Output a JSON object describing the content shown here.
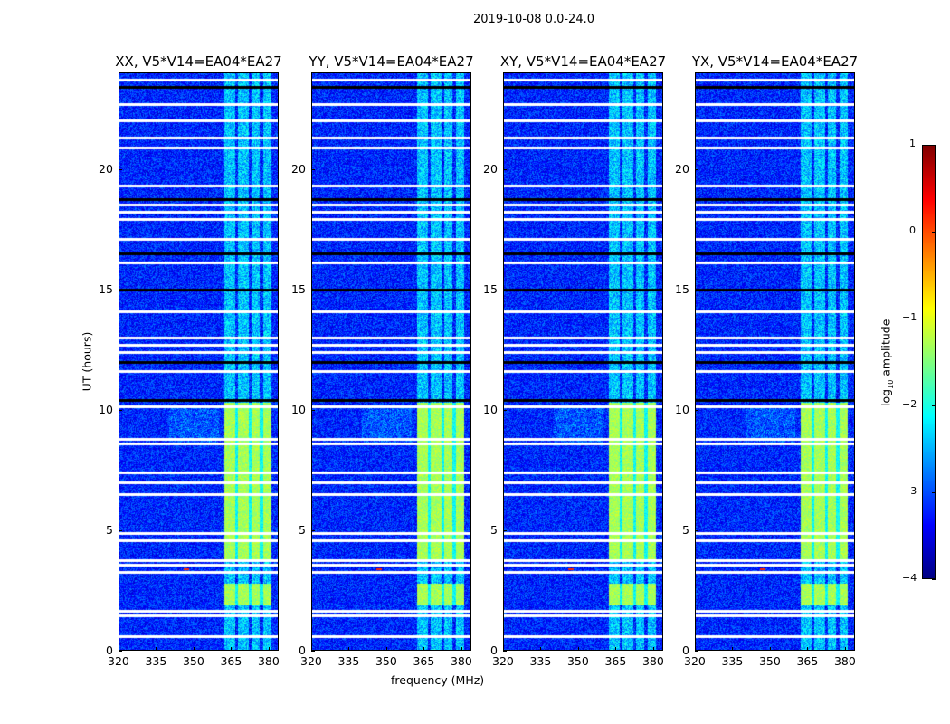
{
  "chart_data": {
    "type": "heatmap",
    "title": "2019-10-08 0.0-24.0",
    "xlabel": "frequency (MHz)",
    "ylabel": "UT (hours)",
    "xlim": [
      320,
      384
    ],
    "ylim": [
      0,
      24
    ],
    "xticks": [
      "320",
      "335",
      "350",
      "365",
      "380"
    ],
    "xtick_values": [
      320,
      335,
      350,
      365,
      380
    ],
    "yticks": [
      "0",
      "5",
      "10",
      "15",
      "20"
    ],
    "ytick_values": [
      0,
      5,
      10,
      15,
      20
    ],
    "panels": [
      {
        "title": "XX, V5*V14=EA04*EA27"
      },
      {
        "title": "YY, V5*V14=EA04*EA27"
      },
      {
        "title": "XY, V5*V14=EA04*EA27"
      },
      {
        "title": "YX, V5*V14=EA04*EA27"
      }
    ],
    "colorbar": {
      "label_main": "log",
      "label_sub": "10",
      "label_rest": " amplitude",
      "range": [
        -4,
        1
      ],
      "colormap": "jet",
      "ticks": [
        "1",
        "0",
        "−1",
        "−2",
        "−3",
        "−4"
      ],
      "tick_values": [
        1,
        0,
        -1,
        -2,
        -3,
        -4
      ]
    },
    "background_level": -3.2,
    "rfi_band_mhz": [
      362,
      381
    ],
    "rfi_band_strong_hours": [
      [
        1.9,
        2.8
      ],
      [
        3.8,
        10.3
      ]
    ],
    "rfi_band_strong_level": -1.3,
    "rfi_band_weak_level": -2.4,
    "flagged_hours": [
      0.6,
      1.46,
      1.65,
      3.26,
      3.56,
      3.75,
      4.6,
      4.9,
      6.5,
      7.0,
      7.4,
      8.6,
      8.8,
      10.15,
      11.6,
      12.4,
      12.7,
      13.0,
      14.1,
      16.1,
      17.1,
      17.9,
      18.2,
      18.5,
      19.3,
      20.9,
      21.3,
      22.0,
      22.7,
      23.7
    ],
    "gap_hours": [
      10.4,
      12.0,
      15.0,
      16.5,
      18.75,
      23.4
    ],
    "hotspot": {
      "freq_mhz": 347,
      "hour": 3.4,
      "level": 0.2
    }
  }
}
